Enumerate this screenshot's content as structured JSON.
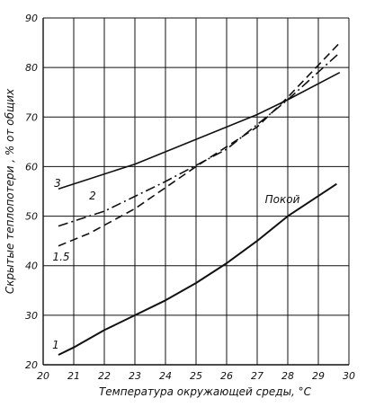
{
  "chart_data": {
    "type": "line",
    "xlabel": "Температура окружающей среды, °С",
    "ylabel": "Скрытые теплопотери , % от общих",
    "xlim": [
      20,
      30
    ],
    "ylim": [
      20,
      90
    ],
    "xticks": [
      20,
      21,
      22,
      23,
      24,
      25,
      26,
      27,
      28,
      29,
      30
    ],
    "yticks": [
      20,
      30,
      40,
      50,
      60,
      70,
      80,
      90
    ],
    "grid": true,
    "series": [
      {
        "name": "3",
        "style": "solid",
        "x": [
          20.5,
          21.5,
          23,
          25,
          27,
          28,
          29.7
        ],
        "y": [
          55.5,
          57.5,
          60.5,
          65.5,
          70.5,
          73.5,
          79
        ]
      },
      {
        "name": "2",
        "style": "dashdot",
        "x": [
          20.5,
          22,
          24,
          26,
          27,
          28,
          29.7
        ],
        "y": [
          48,
          51,
          57,
          63.5,
          68.5,
          73.5,
          83
        ]
      },
      {
        "name": "1.5",
        "style": "dashed",
        "x": [
          20.5,
          21.5,
          23,
          25,
          27,
          28,
          29.7
        ],
        "y": [
          44,
          46.5,
          51.5,
          60,
          68,
          74,
          85
        ]
      },
      {
        "name": "1",
        "label2": "Покой",
        "style": "solid",
        "x": [
          20.5,
          21,
          22,
          23,
          24,
          25,
          26,
          27,
          28,
          29.6
        ],
        "y": [
          22,
          23.5,
          27,
          30,
          33,
          36.5,
          40.5,
          45,
          50,
          56.5
        ]
      }
    ]
  }
}
